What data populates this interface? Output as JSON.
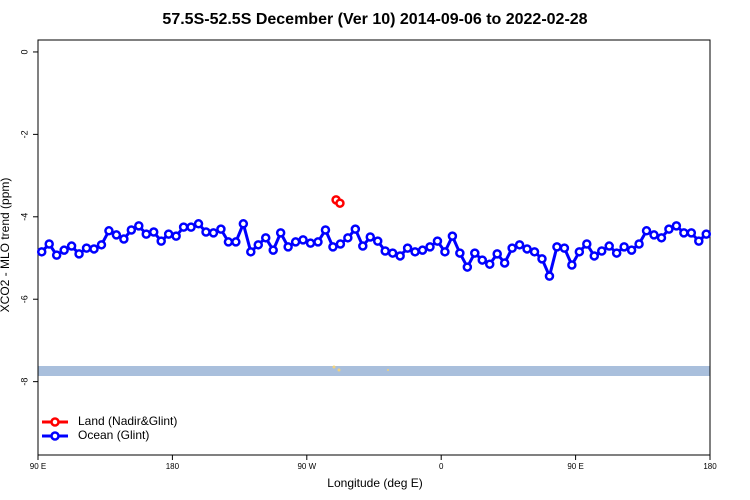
{
  "chart_data": {
    "type": "line",
    "title": "57.5S-52.5S December (Ver 10)   2014-09-06 to 2022-02-28",
    "x_label": "Longitude (deg E)",
    "y_label": "XCO2 - MLO trend (ppm)",
    "xlim": [
      90,
      540
    ],
    "ylim": [
      -9.78,
      0.29
    ],
    "xticks": [
      {
        "value": 90,
        "label": "90 E"
      },
      180,
      {
        "value": 270,
        "label": "90 W"
      },
      {
        "value": 360,
        "label": "0"
      },
      {
        "value": 450,
        "label": "90 E"
      },
      {
        "value": 540,
        "label": "180"
      }
    ],
    "yticks": [
      0,
      -2,
      -4,
      -6,
      -8
    ],
    "legend": "bottom-left",
    "series": [
      {
        "name": "Land (Nadir&Glint)",
        "color": "#ff0000",
        "x": [
          289.6,
          292.2
        ],
        "values": [
          -3.59,
          -3.67
        ]
      },
      {
        "name": "Ocean (Glint)",
        "color": "#0000ff",
        "x": [
          92.5,
          97.5,
          102.5,
          107.5,
          112.5,
          117.5,
          122.5,
          127.5,
          132.5,
          137.5,
          142.5,
          147.5,
          152.5,
          157.5,
          162.5,
          167.5,
          172.5,
          177.5,
          182.5,
          187.5,
          192.5,
          197.5,
          202.5,
          207.5,
          212.5,
          217.5,
          222.5,
          227.5,
          232.5,
          237.5,
          242.5,
          247.5,
          252.5,
          257.5,
          262.5,
          267.5,
          272.5,
          277.5,
          282.5,
          287.5,
          292.5,
          297.5,
          302.5,
          307.5,
          312.5,
          317.5,
          322.5,
          327.5,
          332.5,
          337.5,
          342.5,
          347.5,
          352.5,
          357.5,
          362.5,
          367.5,
          372.5,
          377.5,
          382.5,
          387.5,
          392.5,
          397.5,
          402.5,
          407.5,
          412.5,
          417.5,
          422.5,
          427.5,
          432.5,
          437.5,
          442.5,
          447.5,
          452.5,
          457.5,
          462.5,
          467.5,
          472.5,
          477.5,
          482.5,
          487.5,
          492.5,
          497.5,
          502.5,
          507.5,
          512.5,
          517.5,
          522.5,
          527.5,
          532.5,
          537.5
        ],
        "values": [
          -4.85,
          -4.66,
          -4.93,
          -4.81,
          -4.71,
          -4.9,
          -4.76,
          -4.78,
          -4.68,
          -4.34,
          -4.44,
          -4.54,
          -4.32,
          -4.22,
          -4.42,
          -4.37,
          -4.59,
          -4.42,
          -4.47,
          -4.25,
          -4.25,
          -4.17,
          -4.37,
          -4.39,
          -4.3,
          -4.61,
          -4.61,
          -4.17,
          -4.85,
          -4.68,
          -4.51,
          -4.81,
          -4.39,
          -4.73,
          -4.61,
          -4.56,
          -4.64,
          -4.61,
          -4.32,
          -4.73,
          -4.66,
          -4.51,
          -4.3,
          -4.71,
          -4.49,
          -4.59,
          -4.83,
          -4.88,
          -4.95,
          -4.76,
          -4.85,
          -4.81,
          -4.73,
          -4.59,
          -4.85,
          -4.47,
          -4.88,
          -5.22,
          -4.88,
          -5.05,
          -5.15,
          -4.9,
          -5.12,
          -4.76,
          -4.68,
          -4.78,
          -4.85,
          -5.02,
          -5.44,
          -4.73,
          -4.76,
          -5.17,
          -4.85,
          -4.66,
          -4.95,
          -4.83,
          -4.71,
          -4.88,
          -4.73,
          -4.81,
          -4.66,
          -4.34,
          -4.44,
          -4.51,
          -4.3,
          -4.22,
          -4.39,
          -4.39,
          -4.59,
          -4.42
        ]
      }
    ]
  }
}
